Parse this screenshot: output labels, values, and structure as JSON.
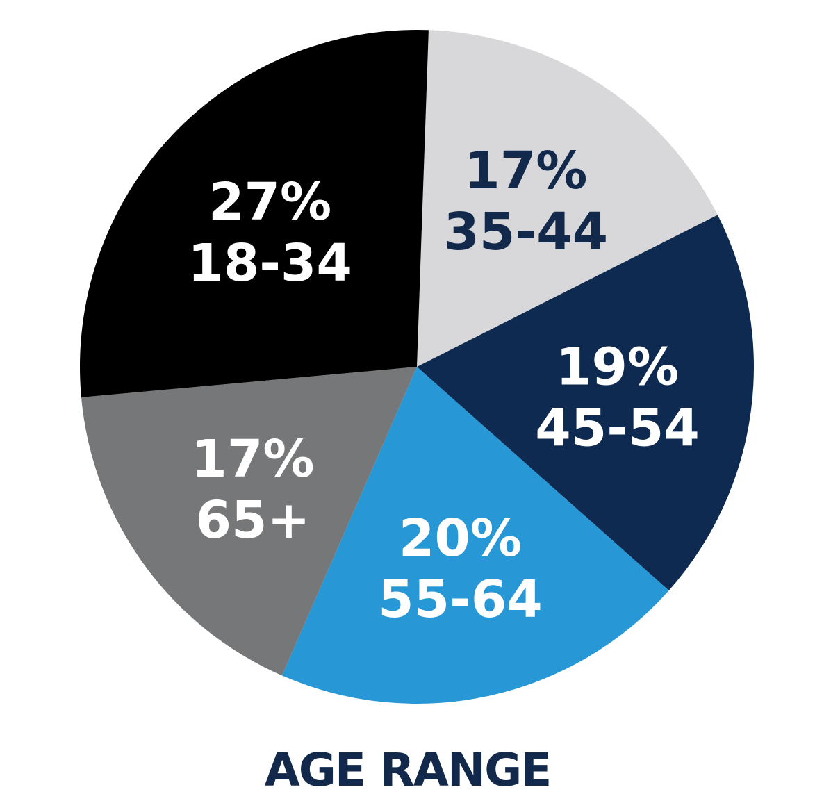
{
  "chart_data": {
    "type": "pie",
    "title": "AGE RANGE",
    "categories": [
      "35-44",
      "45-54",
      "55-64",
      "65+",
      "18-34"
    ],
    "values": [
      17,
      19,
      20,
      17,
      27
    ],
    "value_labels": [
      "17%",
      "19%",
      "20%",
      "17%",
      "27%"
    ],
    "colors": [
      "#d8d8da",
      "#0e2a50",
      "#2897d5",
      "#757779",
      "#000000"
    ],
    "label_colors": [
      "#13294b",
      "#ffffff",
      "#ffffff",
      "#ffffff",
      "#ffffff"
    ]
  }
}
